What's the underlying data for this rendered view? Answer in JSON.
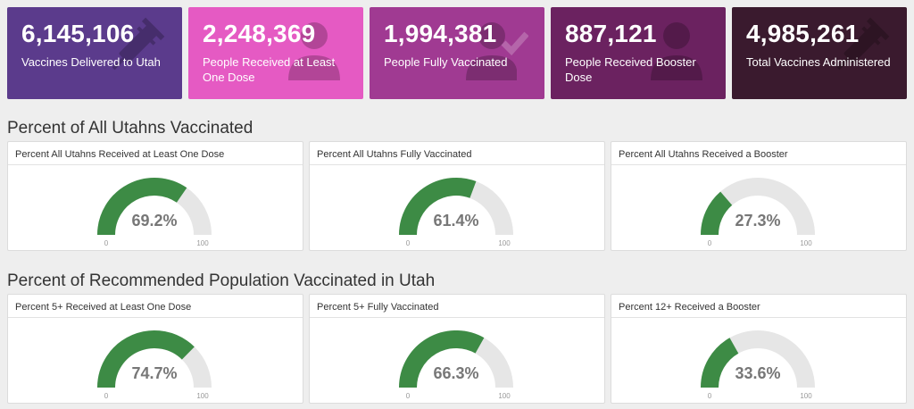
{
  "stats": [
    {
      "value": "6,145,106",
      "label": "Vaccines Delivered to Utah",
      "color": "#5b3b8c",
      "icon": "syringe-icon"
    },
    {
      "value": "2,248,369",
      "label": "People Received at Least One Dose",
      "color": "#e55ac3",
      "icon": "person-icon"
    },
    {
      "value": "1,994,381",
      "label": "People Fully Vaccinated",
      "color": "#a03a92",
      "icon": "person-check-icon"
    },
    {
      "value": "887,121",
      "label": "People Received Booster Dose",
      "color": "#6b2260",
      "icon": "person-plus-icon"
    },
    {
      "value": "4,985,261",
      "label": "Total Vaccines Administered",
      "color": "#3a1a2e",
      "icon": "syringe-icon"
    }
  ],
  "sections": [
    {
      "title": "Percent of All Utahns Vaccinated",
      "panels": [
        {
          "title": "Percent All Utahns Received at Least One Dose",
          "value": 69.2,
          "display": "69.2%",
          "min": "0",
          "max": "100"
        },
        {
          "title": "Percent All Utahns Fully Vaccinated",
          "value": 61.4,
          "display": "61.4%",
          "min": "0",
          "max": "100"
        },
        {
          "title": "Percent All Utahns Received a Booster",
          "value": 27.3,
          "display": "27.3%",
          "min": "0",
          "max": "100"
        }
      ]
    },
    {
      "title": "Percent of Recommended Population Vaccinated in Utah",
      "panels": [
        {
          "title": "Percent 5+ Received at Least One Dose",
          "value": 74.7,
          "display": "74.7%",
          "min": "0",
          "max": "100"
        },
        {
          "title": "Percent 5+ Fully Vaccinated",
          "value": 66.3,
          "display": "66.3%",
          "min": "0",
          "max": "100"
        },
        {
          "title": "Percent 12+ Received a Booster",
          "value": 33.6,
          "display": "33.6%",
          "min": "0",
          "max": "100"
        }
      ]
    }
  ],
  "colors": {
    "gauge_fill": "#3d8b45",
    "gauge_track": "#e6e6e6",
    "gauge_value_text": "#777777",
    "gauge_tick_text": "#999999"
  }
}
